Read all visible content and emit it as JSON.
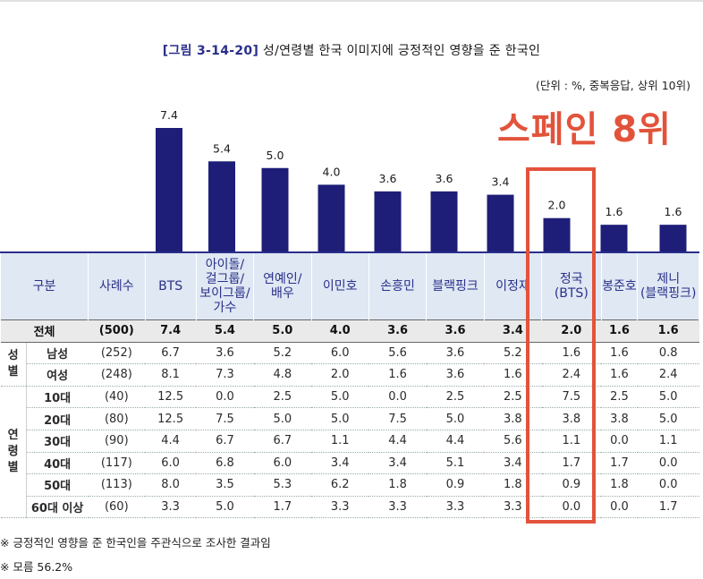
{
  "figure": {
    "title_code": "[그림 3-14-20]",
    "title_text": "성/연령별 한국 이미지에 긍정적인 영향을 준 한국인",
    "unit_note": "(단위 : %, 중복응답, 상위 10위)",
    "overlay_text": "스페인 8위"
  },
  "chart_data": {
    "type": "bar",
    "title": "성/연령별 한국 이미지에 긍정적인 영향을 준 한국인",
    "categories": [
      "BTS",
      "아이돌/걸그룹/보이그룹/가수",
      "연예인/배우",
      "이민호",
      "손흥민",
      "블랙핑크",
      "이정재",
      "정국(BTS)",
      "봉준호",
      "제니(블랙핑크)"
    ],
    "values": [
      7.4,
      5.4,
      5.0,
      4.0,
      3.6,
      3.6,
      3.4,
      2.0,
      1.6,
      1.6
    ],
    "value_labels": [
      "7.4",
      "5.4",
      "5.0",
      "4.0",
      "3.6",
      "3.6",
      "3.4",
      "2.0",
      "1.6",
      "1.6"
    ],
    "ylim": [
      0,
      8
    ],
    "xlabel": "",
    "ylabel": ""
  },
  "table": {
    "header_gubun": "구분",
    "header_samples": "사례수",
    "headers": [
      [
        "BTS"
      ],
      [
        "아이돌/",
        "걸그룹/",
        "보이그룹/",
        "가수"
      ],
      [
        "연예인/",
        "배우"
      ],
      [
        "이민호"
      ],
      [
        "손흥민"
      ],
      [
        "블랙핑크"
      ],
      [
        "이정재"
      ],
      [
        "정국",
        "(BTS)"
      ],
      [
        "봉준호"
      ],
      [
        "제니",
        "(블랙핑크)"
      ]
    ],
    "total": {
      "label": "전체",
      "n": "(500)",
      "values": [
        "7.4",
        "5.4",
        "5.0",
        "4.0",
        "3.6",
        "3.6",
        "3.4",
        "2.0",
        "1.6",
        "1.6"
      ]
    },
    "groups": [
      {
        "label_chars": [
          "성",
          "별"
        ],
        "rows": [
          {
            "label": "남성",
            "n": "(252)",
            "values": [
              "6.7",
              "3.6",
              "5.2",
              "6.0",
              "5.6",
              "3.6",
              "5.2",
              "1.6",
              "1.6",
              "0.8"
            ]
          },
          {
            "label": "여성",
            "n": "(248)",
            "values": [
              "8.1",
              "7.3",
              "4.8",
              "2.0",
              "1.6",
              "3.6",
              "1.6",
              "2.4",
              "1.6",
              "2.4"
            ]
          }
        ]
      },
      {
        "label_chars": [
          "연",
          "령",
          "별"
        ],
        "rows": [
          {
            "label": "10대",
            "n": "(40)",
            "values": [
              "12.5",
              "0.0",
              "2.5",
              "5.0",
              "0.0",
              "2.5",
              "2.5",
              "7.5",
              "2.5",
              "5.0"
            ]
          },
          {
            "label": "20대",
            "n": "(80)",
            "values": [
              "12.5",
              "7.5",
              "5.0",
              "5.0",
              "7.5",
              "5.0",
              "3.8",
              "3.8",
              "3.8",
              "5.0"
            ]
          },
          {
            "label": "30대",
            "n": "(90)",
            "values": [
              "4.4",
              "6.7",
              "6.7",
              "1.1",
              "4.4",
              "4.4",
              "5.6",
              "1.1",
              "0.0",
              "1.1"
            ]
          },
          {
            "label": "40대",
            "n": "(117)",
            "values": [
              "6.0",
              "6.8",
              "6.0",
              "3.4",
              "3.4",
              "5.1",
              "3.4",
              "1.7",
              "1.7",
              "0.0"
            ]
          },
          {
            "label": "50대",
            "n": "(113)",
            "values": [
              "8.0",
              "3.5",
              "5.3",
              "6.2",
              "1.8",
              "0.9",
              "1.8",
              "0.9",
              "1.8",
              "0.0"
            ]
          },
          {
            "label": "60대 이상",
            "n": "(60)",
            "values": [
              "3.3",
              "5.0",
              "1.7",
              "3.3",
              "3.3",
              "3.3",
              "3.3",
              "0.0",
              "0.0",
              "1.7"
            ]
          }
        ]
      }
    ]
  },
  "footnotes": [
    "※ 긍정적인 영향을 준 한국인을 주관식으로 조사한 결과임",
    "※ 모름 56.2%"
  ],
  "colors": {
    "bar": "#1e1e78",
    "highlight": "#e2533b",
    "header_bg": "#dfe8f3",
    "title_code": "#2a2f8a"
  }
}
